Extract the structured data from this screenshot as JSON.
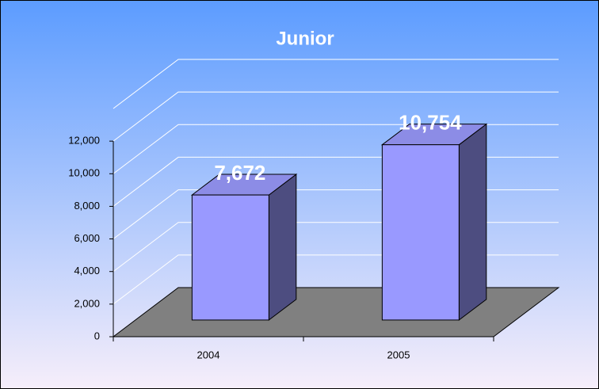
{
  "chart_data": {
    "type": "bar3d",
    "title": "Junior",
    "categories": [
      "2004",
      "2005"
    ],
    "values": [
      7672,
      10754
    ],
    "value_labels": [
      "7,672",
      "10,754"
    ],
    "color": "#9999ff",
    "ylim": [
      0,
      14000
    ],
    "yticks": [
      0,
      {
        "value": 2000,
        "label": "2,000"
      },
      {
        "value": 4000,
        "label": "4,000"
      },
      {
        "value": 6000,
        "label": "6,000"
      },
      {
        "value": 8000,
        "label": "8,000"
      },
      {
        "value": 10000,
        "label": "10,000"
      },
      {
        "value": 12000,
        "label": "12,000"
      }
    ],
    "grid": true
  }
}
